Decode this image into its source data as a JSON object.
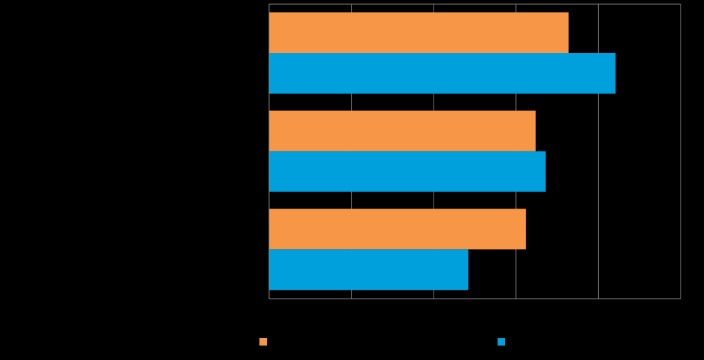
{
  "chart_data": {
    "type": "hbar",
    "categories": [
      null,
      null,
      null
    ],
    "series": [
      {
        "color": "#f79646",
        "values": [
          3.64,
          3.24,
          3.12
        ]
      },
      {
        "color": "#00a0dc",
        "values": [
          4.21,
          3.36,
          2.42
        ]
      }
    ],
    "xlim": [
      0,
      5
    ],
    "xticks": [
      0,
      1,
      2,
      3,
      4,
      5
    ],
    "grid": true
  }
}
